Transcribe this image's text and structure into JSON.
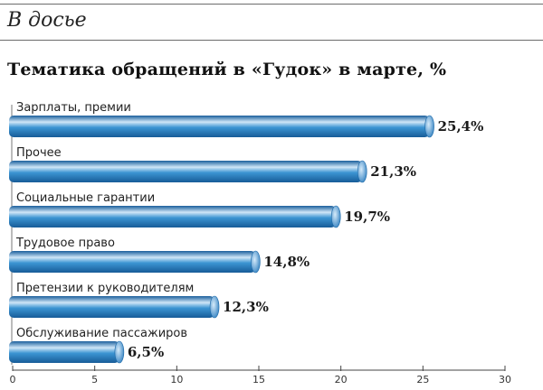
{
  "header": {
    "section": "В досье"
  },
  "chart_data": {
    "type": "bar",
    "orientation": "horizontal",
    "title": "Тематика обращений в «Гудок» в марте, %",
    "categories": [
      "Зарплаты, премии",
      "Прочее",
      "Социальные гарантии",
      "Трудовое право",
      "Претензии к руководителям",
      "Обслуживание пассажиров"
    ],
    "values": [
      25.4,
      21.3,
      19.7,
      14.8,
      12.3,
      6.5
    ],
    "value_labels": [
      "25,4%",
      "21,3%",
      "19,7%",
      "14,8%",
      "12,3%",
      "6,5%"
    ],
    "xlim": [
      0,
      30
    ],
    "xticks": [
      0,
      5,
      10,
      15,
      20,
      25,
      30
    ],
    "grid": false,
    "colors": {
      "bar": "#2f86c9",
      "bar_light": "#cfe6f7",
      "bar_dark": "#175c98"
    }
  }
}
